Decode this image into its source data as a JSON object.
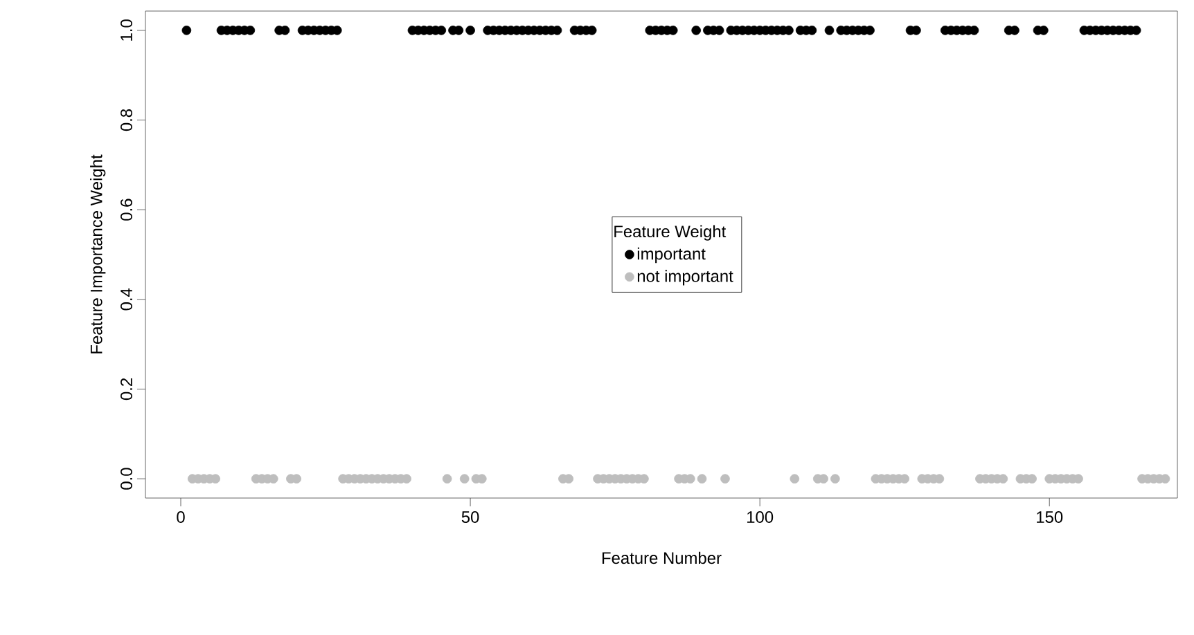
{
  "chart_data": {
    "type": "scatter",
    "xlabel": "Feature Number",
    "ylabel": "Feature Importance Weight",
    "legend_title": "Feature Weight",
    "legend": "center",
    "marker": "circle",
    "xlim": [
      -6.1,
      172.1
    ],
    "ylim": [
      -0.043,
      1.043
    ],
    "xticks": [
      0,
      50,
      100,
      150
    ],
    "yticks": [
      {
        "value": 0,
        "label": "0.0"
      },
      {
        "value": 0.2,
        "label": "0.2"
      },
      {
        "value": 0.4,
        "label": "0.4"
      },
      {
        "value": 0.6,
        "label": "0.6"
      },
      {
        "value": 0.8,
        "label": "0.8"
      },
      {
        "value": 1,
        "label": "1.0"
      }
    ],
    "series": [
      {
        "name": "important",
        "color": "#000000",
        "x": [
          1,
          7,
          8,
          9,
          10,
          11,
          12,
          17,
          18,
          21,
          22,
          23,
          24,
          25,
          26,
          27,
          40,
          41,
          42,
          43,
          44,
          45,
          47,
          48,
          50,
          53,
          54,
          55,
          56,
          57,
          58,
          59,
          60,
          61,
          62,
          63,
          64,
          65,
          68,
          69,
          70,
          71,
          81,
          82,
          83,
          84,
          85,
          89,
          91,
          92,
          93,
          95,
          96,
          97,
          98,
          99,
          100,
          101,
          102,
          103,
          104,
          105,
          107,
          108,
          109,
          112,
          114,
          115,
          116,
          117,
          118,
          119,
          126,
          127,
          132,
          133,
          134,
          135,
          136,
          137,
          143,
          144,
          148,
          149,
          156,
          157,
          158,
          159,
          160,
          161,
          162,
          163,
          164,
          165
        ],
        "values": [
          1,
          1,
          1,
          1,
          1,
          1,
          1,
          1,
          1,
          1,
          1,
          1,
          1,
          1,
          1,
          1,
          1,
          1,
          1,
          1,
          1,
          1,
          1,
          1,
          1,
          1,
          1,
          1,
          1,
          1,
          1,
          1,
          1,
          1,
          1,
          1,
          1,
          1,
          1,
          1,
          1,
          1,
          1,
          1,
          1,
          1,
          1,
          1,
          1,
          1,
          1,
          1,
          1,
          1,
          1,
          1,
          1,
          1,
          1,
          1,
          1,
          1,
          1,
          1,
          1,
          1,
          1,
          1,
          1,
          1,
          1,
          1,
          1,
          1,
          1,
          1,
          1,
          1,
          1,
          1,
          1,
          1,
          1,
          1,
          1,
          1,
          1,
          1,
          1,
          1,
          1,
          1,
          1,
          1
        ]
      },
      {
        "name": "not important",
        "color": "#bebebe",
        "x": [
          2,
          3,
          4,
          5,
          6,
          13,
          14,
          15,
          16,
          19,
          20,
          28,
          29,
          30,
          31,
          32,
          33,
          34,
          35,
          36,
          37,
          38,
          39,
          46,
          49,
          51,
          52,
          66,
          67,
          72,
          73,
          74,
          75,
          76,
          77,
          78,
          79,
          80,
          86,
          87,
          88,
          90,
          94,
          106,
          110,
          111,
          113,
          120,
          121,
          122,
          123,
          124,
          125,
          128,
          129,
          130,
          131,
          138,
          139,
          140,
          141,
          142,
          145,
          146,
          147,
          150,
          151,
          152,
          153,
          154,
          155,
          166,
          167,
          168,
          169,
          170
        ],
        "values": [
          0,
          0,
          0,
          0,
          0,
          0,
          0,
          0,
          0,
          0,
          0,
          0,
          0,
          0,
          0,
          0,
          0,
          0,
          0,
          0,
          0,
          0,
          0,
          0,
          0,
          0,
          0,
          0,
          0,
          0,
          0,
          0,
          0,
          0,
          0,
          0,
          0,
          0,
          0,
          0,
          0,
          0,
          0,
          0,
          0,
          0,
          0,
          0,
          0,
          0,
          0,
          0,
          0,
          0,
          0,
          0,
          0,
          0,
          0,
          0,
          0,
          0,
          0,
          0,
          0,
          0,
          0,
          0,
          0,
          0,
          0,
          0,
          0,
          0,
          0,
          0
        ]
      }
    ]
  }
}
